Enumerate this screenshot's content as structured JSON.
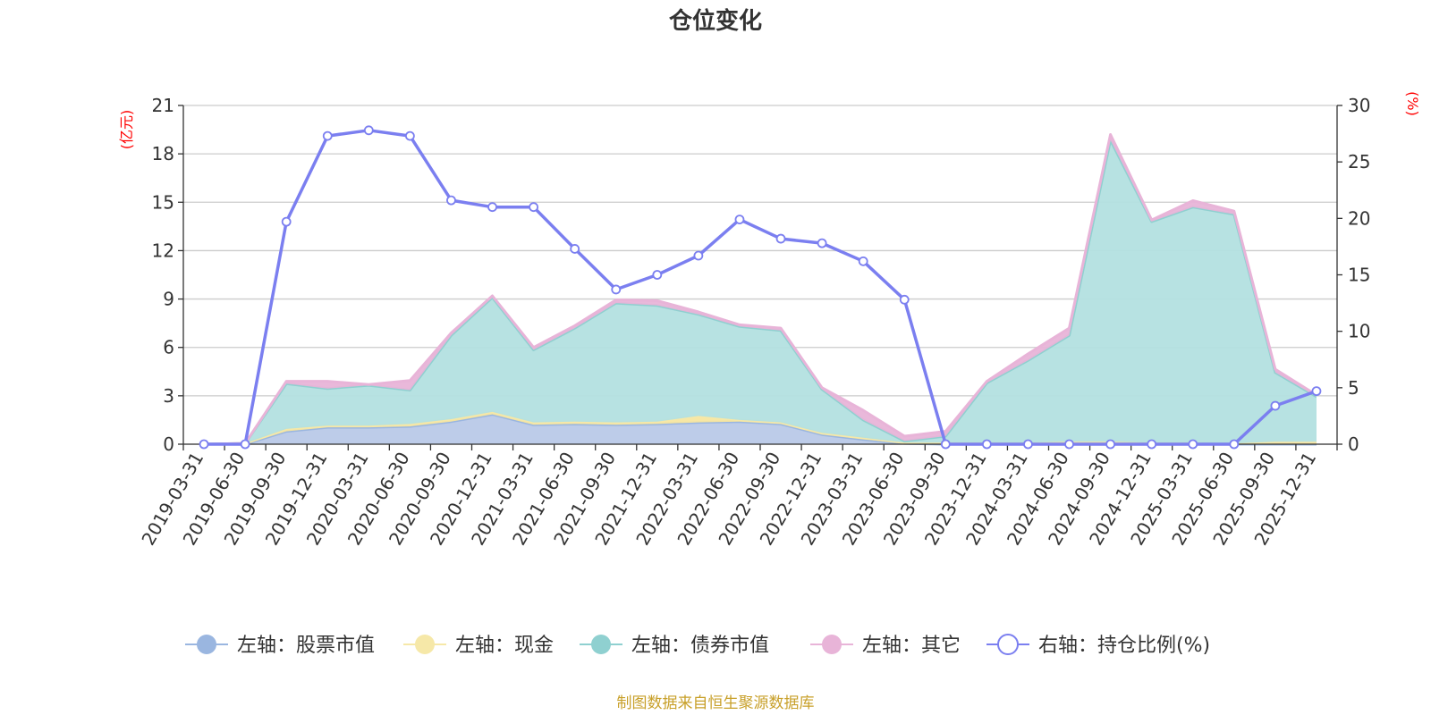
{
  "chart_data": {
    "type": "area",
    "title": "仓位变化",
    "left_unit": "(亿元)",
    "right_unit": "(%)",
    "left_axis": {
      "min": 0,
      "max": 21,
      "ticks": [
        "0",
        "3",
        "6",
        "9",
        "12",
        "15",
        "18",
        "21"
      ]
    },
    "right_axis": {
      "min": 0,
      "max": 30,
      "ticks": [
        "0",
        "5",
        "10",
        "15",
        "20",
        "25",
        "30"
      ]
    },
    "categories": [
      "2019-03-31",
      "2019-06-30",
      "2019-09-30",
      "2019-12-31",
      "2020-03-31",
      "2020-06-30",
      "2020-09-30",
      "2020-12-31",
      "2021-03-31",
      "2021-06-30",
      "2021-09-30",
      "2021-12-31",
      "2022-03-31",
      "2022-06-30",
      "2022-09-30",
      "2022-12-31",
      "2023-03-31",
      "2023-06-30",
      "2023-09-30",
      "2023-12-31",
      "2024-03-31",
      "2024-06-30",
      "2024-09-30",
      "2024-12-31",
      "2025-03-31",
      "2025-06-30",
      "2025-09-30",
      "2025-12-31"
    ],
    "stacked_series": [
      {
        "name": "左轴：股票市值",
        "color": "#9ab6e0",
        "fill": "#b9c9e8",
        "values": [
          0,
          0,
          0.8,
          1.05,
          1.05,
          1.1,
          1.4,
          1.85,
          1.2,
          1.25,
          1.2,
          1.25,
          1.35,
          1.4,
          1.25,
          0.6,
          0.3,
          0.05,
          0,
          0,
          0,
          0,
          0,
          0,
          0,
          0,
          0,
          0
        ]
      },
      {
        "name": "左轴：现金",
        "color": "#f6e8a8",
        "fill": "#f7e6a0",
        "values": [
          0,
          0.05,
          0.15,
          0.1,
          0.1,
          0.15,
          0.15,
          0.15,
          0.15,
          0.15,
          0.15,
          0.15,
          0.4,
          0.1,
          0.1,
          0.1,
          0.1,
          0.05,
          0.1,
          0.1,
          0.1,
          0.15,
          0.15,
          0.1,
          0.1,
          0.05,
          0.15,
          0.15
        ]
      },
      {
        "name": "左轴：债券市值",
        "color": "#8fd0d0",
        "fill": "#b3e0e0",
        "values": [
          0,
          0,
          2.8,
          2.3,
          2.5,
          2.1,
          5.2,
          7.1,
          4.5,
          5.8,
          7.4,
          7.2,
          6.3,
          5.8,
          5.7,
          2.7,
          1.1,
          0.1,
          0.4,
          3.7,
          5.1,
          6.6,
          18.7,
          13.7,
          14.6,
          14.2,
          4.3,
          2.8
        ]
      },
      {
        "name": "左轴：其它",
        "color": "#e8b4d8",
        "fill": "#e8b4d8",
        "values": [
          0,
          0,
          0.15,
          0.45,
          0.05,
          0.6,
          0.15,
          0.1,
          0.15,
          0.15,
          0.2,
          0.3,
          0.15,
          0.1,
          0.15,
          0.1,
          0.6,
          0.3,
          0.3,
          0.1,
          0.4,
          0.45,
          0.35,
          0.1,
          0.4,
          0.2,
          0.2,
          0.1
        ]
      }
    ],
    "line_series": {
      "name": "右轴：持仓比例(%)",
      "color": "#7b7ff0",
      "values": [
        0,
        0,
        19.7,
        27.3,
        27.8,
        27.3,
        21.6,
        21.0,
        21.0,
        17.3,
        13.7,
        15.0,
        16.7,
        19.9,
        18.2,
        17.8,
        16.2,
        12.8,
        0,
        0,
        0,
        0,
        0,
        0,
        0,
        0,
        3.4,
        4.7
      ]
    }
  },
  "legend": [
    {
      "label": "左轴：股票市值",
      "color": "#9ab6e0"
    },
    {
      "label": "左轴：现金",
      "color": "#f6e8a8"
    },
    {
      "label": "左轴：债券市值",
      "color": "#8fd0d0"
    },
    {
      "label": "左轴：其它",
      "color": "#e8b4d8"
    },
    {
      "label": "右轴：持仓比例(%)",
      "color": "#7b7ff0"
    }
  ],
  "footer": {
    "source": "制图数据来自恒生聚源数据库"
  }
}
